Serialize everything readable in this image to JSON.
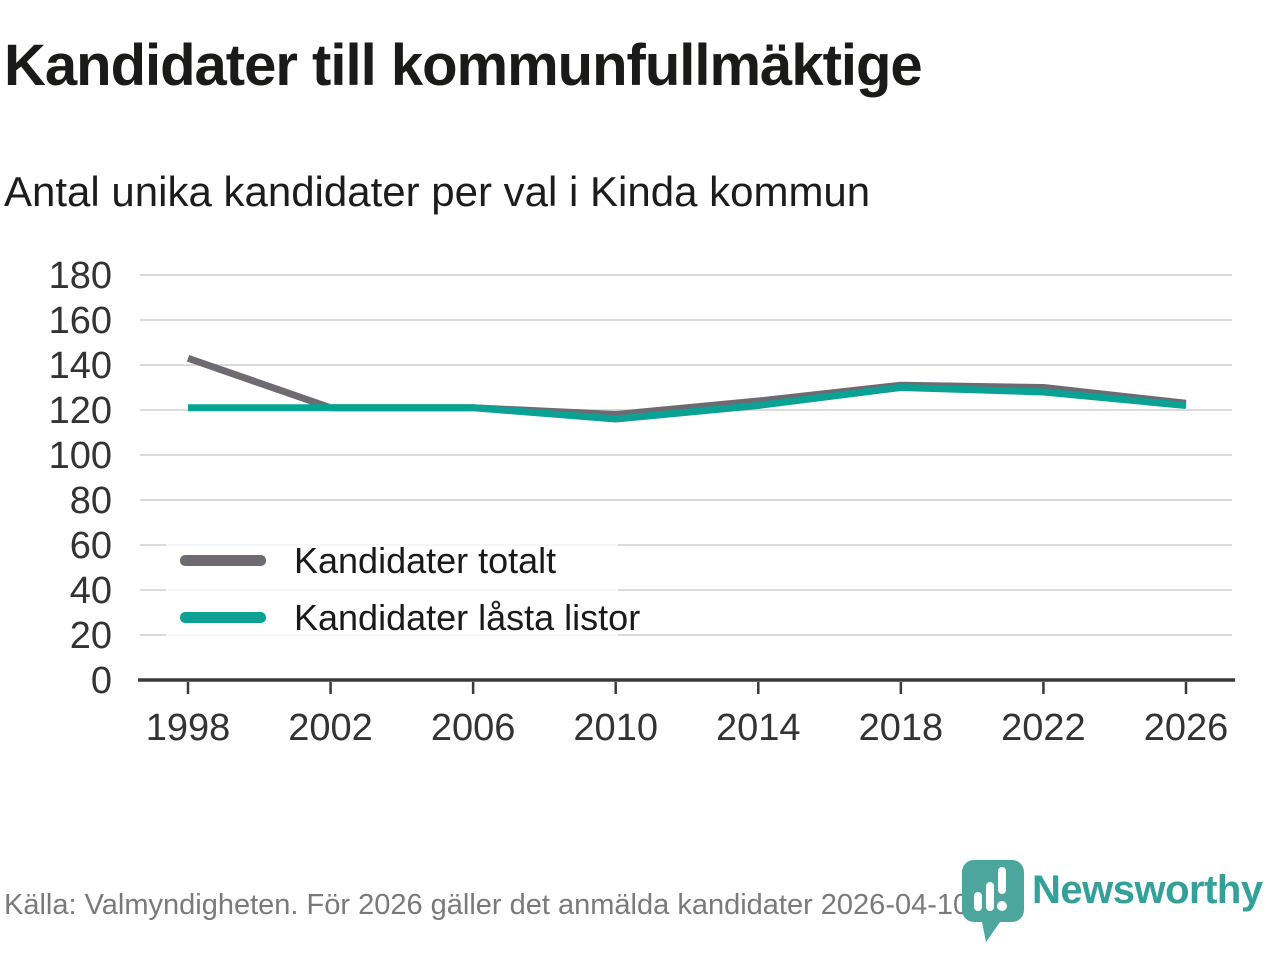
{
  "header": {
    "title": "Kandidater till kommunfullmäktige",
    "subtitle": "Antal unika kandidater per val i Kinda kommun"
  },
  "chart_data": {
    "type": "line",
    "title": "Kandidater till kommunfullmäktige",
    "subtitle": "Antal unika kandidater per val i Kinda kommun",
    "x": [
      1998,
      2002,
      2006,
      2010,
      2014,
      2018,
      2022,
      2026
    ],
    "series": [
      {
        "name": "Kandidater totalt",
        "color": "#6e6a71",
        "values": [
          143,
          121,
          121,
          118,
          124,
          131,
          130,
          123
        ]
      },
      {
        "name": "Kandidater låsta listor",
        "color": "#0aa294",
        "values": [
          121,
          121,
          121,
          116,
          122,
          130,
          128,
          122
        ]
      }
    ],
    "ylim": [
      0,
      180
    ],
    "ytick_step": 20,
    "grid": "horizontal",
    "legend_position": "inside-lower-left"
  },
  "footer": {
    "source": "Källa: Valmyndigheten. För 2026 gäller det anmälda kandidater 2026-04-10.",
    "brand": "Newsworthy"
  },
  "colors": {
    "grid": "#dbdbdb",
    "axis": "#3a3a3a",
    "tick_label": "#333333",
    "title": "#1a1a19",
    "footer_text": "#7a7a7a",
    "brand_teal": "#33a099",
    "logo_bubble": "#4ca69e"
  }
}
